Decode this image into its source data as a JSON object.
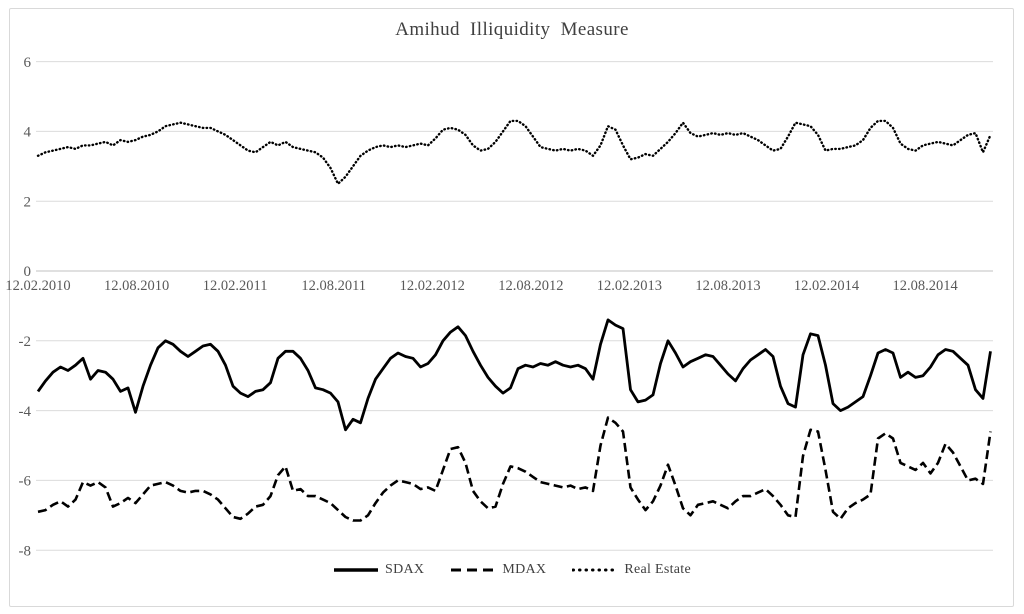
{
  "title": "Amihud Illiquidity Measure",
  "colors": {
    "line": "#000000",
    "grid": "#dcdcdc",
    "zero_axis": "#c0c0c0",
    "tick_text": "#595959",
    "title_text": "#404040",
    "frame_border": "#d9d9d9",
    "background": "#ffffff"
  },
  "legend": {
    "items": [
      {
        "label": "SDAX",
        "style": "solid"
      },
      {
        "label": "MDAX",
        "style": "dashed"
      },
      {
        "label": "Real Estate",
        "style": "dotted"
      }
    ],
    "position": "bottom-center"
  },
  "chart_data": {
    "type": "line",
    "title": "Amihud Illiquidity Measure",
    "xlabel": "",
    "ylabel": "",
    "ylim": [
      -8,
      6
    ],
    "y_ticks": [
      6,
      4,
      2,
      0,
      -2,
      -4,
      -6,
      -8
    ],
    "x_tick_labels": [
      "12.02.2010",
      "12.08.2010",
      "12.02.2011",
      "12.08.2011",
      "12.02.2012",
      "12.08.2012",
      "12.02.2013",
      "12.08.2013",
      "12.02.2014",
      "12.08.2014"
    ],
    "grid": "horizontal",
    "legend_position": "bottom",
    "sampling": "values sampled at ~2-week intervals across the full x-range (first sample at 12.02.2010)",
    "series": [
      {
        "name": "SDAX",
        "line_style": "solid",
        "values": [
          -3.45,
          -3.15,
          -2.9,
          -2.75,
          -2.85,
          -2.7,
          -2.5,
          -3.1,
          -2.85,
          -2.9,
          -3.1,
          -3.45,
          -3.35,
          -4.05,
          -3.3,
          -2.7,
          -2.2,
          -2.0,
          -2.1,
          -2.3,
          -2.45,
          -2.3,
          -2.15,
          -2.1,
          -2.3,
          -2.7,
          -3.3,
          -3.5,
          -3.6,
          -3.45,
          -3.4,
          -3.2,
          -2.5,
          -2.3,
          -2.3,
          -2.5,
          -2.85,
          -3.35,
          -3.4,
          -3.5,
          -3.75,
          -4.55,
          -4.25,
          -4.35,
          -3.65,
          -3.1,
          -2.8,
          -2.5,
          -2.35,
          -2.45,
          -2.5,
          -2.75,
          -2.65,
          -2.4,
          -2.0,
          -1.75,
          -1.6,
          -1.85,
          -2.3,
          -2.7,
          -3.05,
          -3.3,
          -3.5,
          -3.35,
          -2.8,
          -2.7,
          -2.75,
          -2.65,
          -2.7,
          -2.6,
          -2.7,
          -2.75,
          -2.7,
          -2.8,
          -3.1,
          -2.1,
          -1.4,
          -1.55,
          -1.65,
          -3.4,
          -3.75,
          -3.7,
          -3.55,
          -2.65,
          -2.0,
          -2.35,
          -2.75,
          -2.6,
          -2.5,
          -2.4,
          -2.45,
          -2.7,
          -2.95,
          -3.15,
          -2.8,
          -2.55,
          -2.4,
          -2.25,
          -2.45,
          -3.3,
          -3.8,
          -3.9,
          -2.4,
          -1.8,
          -1.85,
          -2.7,
          -3.8,
          -4.0,
          -3.9,
          -3.75,
          -3.6,
          -3.0,
          -2.35,
          -2.25,
          -2.35,
          -3.05,
          -2.9,
          -3.05,
          -3.0,
          -2.75,
          -2.4,
          -2.25,
          -2.3,
          -2.5,
          -2.7,
          -3.4,
          -3.65,
          -2.3
        ]
      },
      {
        "name": "MDAX",
        "line_style": "dashed",
        "values": [
          -6.9,
          -6.85,
          -6.7,
          -6.6,
          -6.75,
          -6.55,
          -6.05,
          -6.15,
          -6.05,
          -6.2,
          -6.75,
          -6.65,
          -6.5,
          -6.65,
          -6.4,
          -6.15,
          -6.1,
          -6.05,
          -6.15,
          -6.3,
          -6.35,
          -6.3,
          -6.3,
          -6.4,
          -6.55,
          -6.8,
          -7.05,
          -7.1,
          -6.95,
          -6.75,
          -6.7,
          -6.45,
          -5.85,
          -5.6,
          -6.3,
          -6.25,
          -6.45,
          -6.45,
          -6.55,
          -6.65,
          -6.85,
          -7.05,
          -7.15,
          -7.15,
          -7.0,
          -6.65,
          -6.35,
          -6.15,
          -6.0,
          -6.05,
          -6.1,
          -6.25,
          -6.2,
          -6.3,
          -5.7,
          -5.1,
          -5.05,
          -5.5,
          -6.3,
          -6.6,
          -6.8,
          -6.75,
          -6.1,
          -5.6,
          -5.65,
          -5.75,
          -5.9,
          -6.05,
          -6.1,
          -6.15,
          -6.2,
          -6.15,
          -6.25,
          -6.2,
          -6.3,
          -5.0,
          -4.2,
          -4.35,
          -4.6,
          -6.2,
          -6.55,
          -6.85,
          -6.6,
          -6.15,
          -5.55,
          -6.15,
          -6.8,
          -7.0,
          -6.7,
          -6.65,
          -6.6,
          -6.7,
          -6.8,
          -6.6,
          -6.45,
          -6.45,
          -6.35,
          -6.25,
          -6.45,
          -6.7,
          -7.0,
          -7.05,
          -5.3,
          -4.55,
          -4.6,
          -5.7,
          -6.9,
          -7.1,
          -6.8,
          -6.65,
          -6.55,
          -6.4,
          -4.8,
          -4.65,
          -4.8,
          -5.5,
          -5.6,
          -5.7,
          -5.5,
          -5.8,
          -5.5,
          -4.95,
          -5.2,
          -5.6,
          -6.0,
          -5.95,
          -6.1,
          -4.6
        ]
      },
      {
        "name": "Real Estate",
        "line_style": "dotted",
        "values": [
          3.3,
          3.4,
          3.45,
          3.5,
          3.55,
          3.5,
          3.6,
          3.6,
          3.65,
          3.7,
          3.6,
          3.75,
          3.7,
          3.75,
          3.85,
          3.9,
          4.0,
          4.15,
          4.2,
          4.25,
          4.2,
          4.15,
          4.1,
          4.1,
          4.0,
          3.9,
          3.75,
          3.6,
          3.45,
          3.4,
          3.55,
          3.7,
          3.6,
          3.7,
          3.55,
          3.5,
          3.45,
          3.4,
          3.25,
          2.95,
          2.5,
          2.7,
          3.0,
          3.3,
          3.45,
          3.55,
          3.6,
          3.55,
          3.6,
          3.55,
          3.6,
          3.65,
          3.6,
          3.8,
          4.05,
          4.1,
          4.05,
          3.9,
          3.6,
          3.45,
          3.5,
          3.7,
          4.0,
          4.3,
          4.3,
          4.15,
          3.85,
          3.55,
          3.5,
          3.45,
          3.5,
          3.45,
          3.5,
          3.45,
          3.3,
          3.6,
          4.15,
          4.05,
          3.6,
          3.2,
          3.25,
          3.35,
          3.3,
          3.5,
          3.7,
          3.95,
          4.25,
          3.95,
          3.85,
          3.9,
          3.95,
          3.9,
          3.95,
          3.9,
          3.95,
          3.85,
          3.75,
          3.6,
          3.45,
          3.5,
          3.85,
          4.25,
          4.2,
          4.15,
          3.9,
          3.45,
          3.5,
          3.5,
          3.55,
          3.6,
          3.75,
          4.1,
          4.3,
          4.3,
          4.1,
          3.65,
          3.5,
          3.45,
          3.6,
          3.65,
          3.7,
          3.65,
          3.6,
          3.75,
          3.9,
          3.95,
          3.4,
          3.9
        ]
      }
    ]
  }
}
